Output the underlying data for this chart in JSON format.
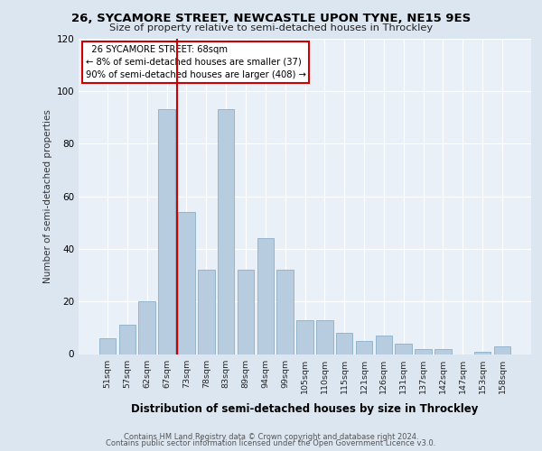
{
  "title": "26, SYCAMORE STREET, NEWCASTLE UPON TYNE, NE15 9ES",
  "subtitle": "Size of property relative to semi-detached houses in Throckley",
  "xlabel": "Distribution of semi-detached houses by size in Throckley",
  "ylabel": "Number of semi-detached properties",
  "categories": [
    "51sqm",
    "57sqm",
    "62sqm",
    "67sqm",
    "73sqm",
    "78sqm",
    "83sqm",
    "89sqm",
    "94sqm",
    "99sqm",
    "105sqm",
    "110sqm",
    "115sqm",
    "121sqm",
    "126sqm",
    "131sqm",
    "137sqm",
    "142sqm",
    "147sqm",
    "153sqm",
    "158sqm"
  ],
  "values": [
    6,
    11,
    20,
    93,
    54,
    32,
    93,
    32,
    44,
    32,
    13,
    13,
    8,
    5,
    7,
    4,
    2,
    2,
    0,
    1,
    3
  ],
  "bar_color": "#b8ccdf",
  "bar_edge_color": "#8aafc8",
  "vline_index": 3,
  "vline_color": "#cc0000",
  "marker_label": "26 SYCAMORE STREET: 68sqm",
  "smaller_text": "← 8% of semi-detached houses are smaller (37)",
  "larger_text": "90% of semi-detached houses are larger (408) →",
  "bg_color": "#dce6f0",
  "plot_bg_color": "#eaf0f8",
  "ylim": [
    0,
    120
  ],
  "yticks": [
    0,
    20,
    40,
    60,
    80,
    100,
    120
  ],
  "footer1": "Contains HM Land Registry data © Crown copyright and database right 2024.",
  "footer2": "Contains public sector information licensed under the Open Government Licence v3.0."
}
